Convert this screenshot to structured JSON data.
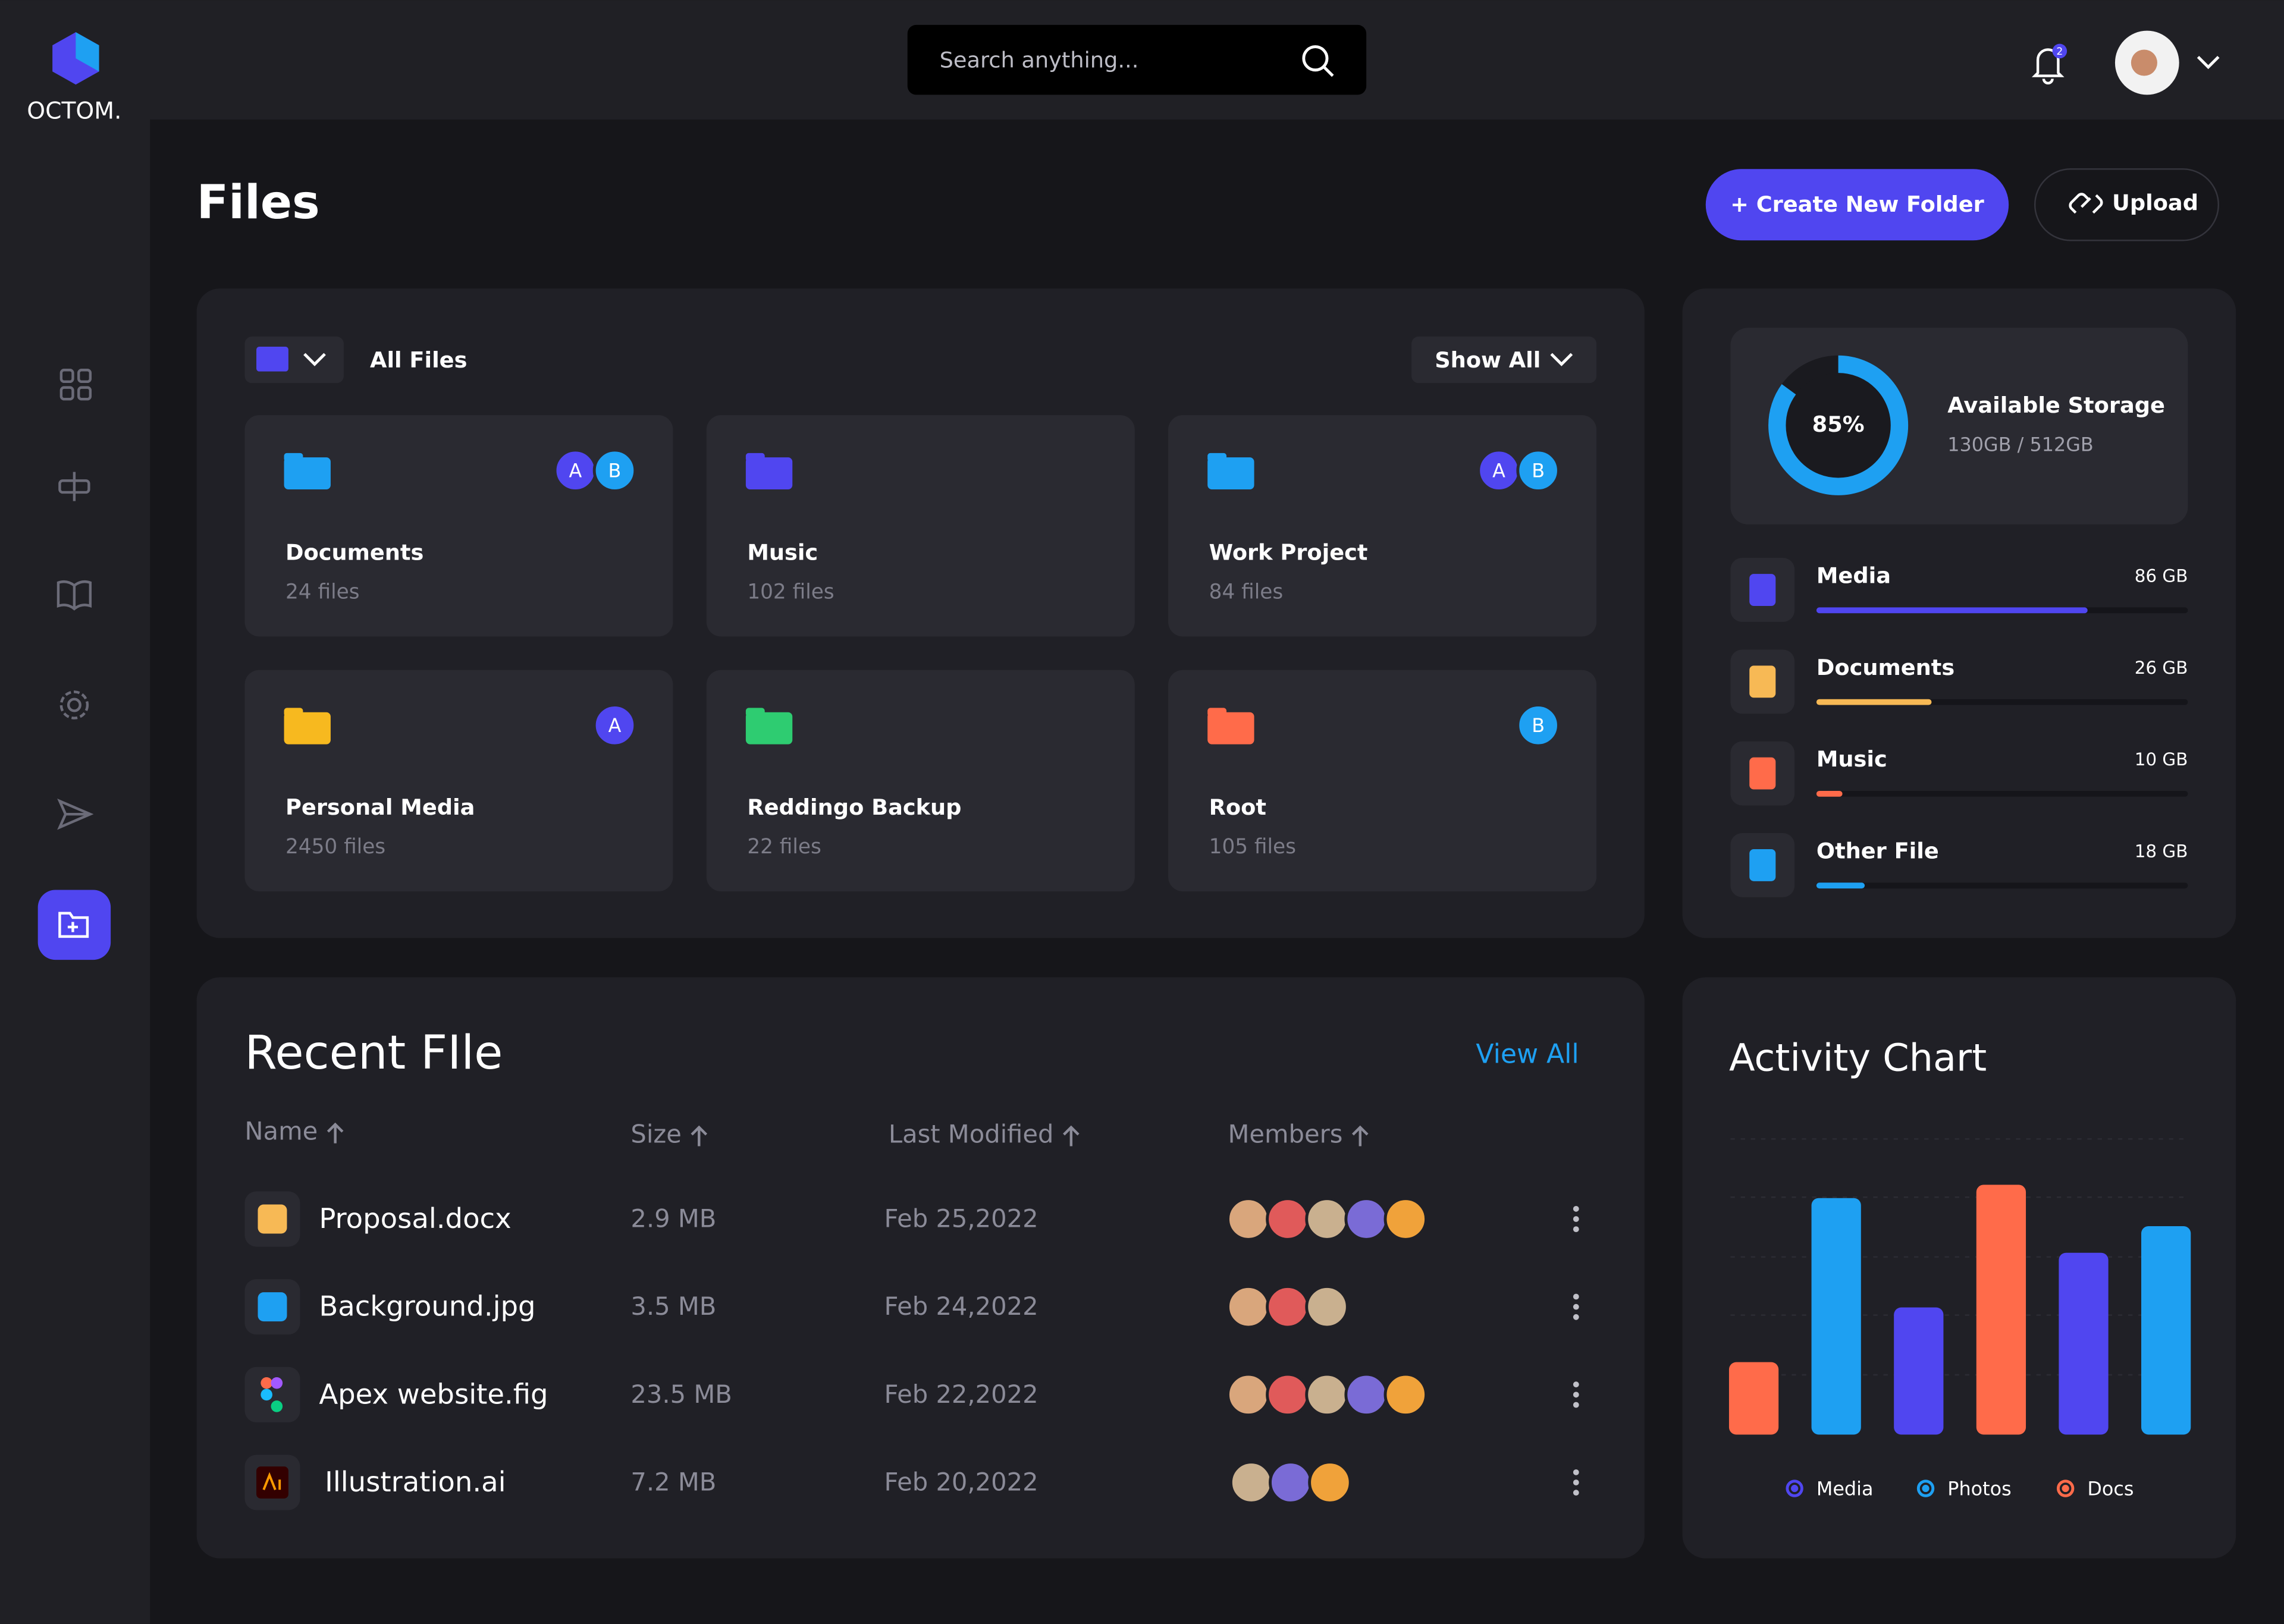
{
  "brand": "OCTOM.",
  "search_placeholder": "Search anything...",
  "notification_count": "2",
  "page_title": "Files",
  "actions": {
    "create": "+ Create New Folder",
    "upload": "Upload"
  },
  "folders_panel": {
    "filter": "All Files",
    "show": "Show All",
    "folders": [
      {
        "name": "Documents",
        "count": "24 files",
        "badges": [
          "A",
          "B"
        ],
        "color": "#1ea0f2"
      },
      {
        "name": "Music",
        "count": "102 files",
        "badges": [],
        "color": "#5046f0"
      },
      {
        "name": "Work Project",
        "count": "84 files",
        "badges": [
          "A",
          "B"
        ],
        "color": "#1ea0f2"
      },
      {
        "name": "Personal Media",
        "count": "2450 files",
        "badges": [
          "A"
        ],
        "color": "#f7b91f"
      },
      {
        "name": "Reddingo Backup",
        "count": "22 files",
        "badges": [],
        "color": "#2ecc71"
      },
      {
        "name": "Root",
        "count": "105 files",
        "badges": [
          "B"
        ],
        "color": "#ff6b4a"
      }
    ]
  },
  "storage": {
    "percent": 85,
    "percent_label": "85%",
    "title": "Available Storage",
    "capacity": "130GB / 512GB",
    "items": [
      {
        "name": "Media",
        "size": "86 GB",
        "progress": 73,
        "color": "#5046f0"
      },
      {
        "name": "Documents",
        "size": "26 GB",
        "progress": 31,
        "color": "#f7b955"
      },
      {
        "name": "Music",
        "size": "10 GB",
        "progress": 7,
        "color": "#ff6b4a"
      },
      {
        "name": "Other File",
        "size": "18 GB",
        "progress": 13,
        "color": "#1ea0f2"
      }
    ]
  },
  "recent": {
    "title": "Recent FIle",
    "view_all": "View All",
    "columns": [
      "Name",
      "Size",
      "Last Modified",
      "Members"
    ],
    "rows": [
      {
        "name": "Proposal.docx",
        "size": "2.9 MB",
        "modified": "Feb 25,2022",
        "members": 5
      },
      {
        "name": "Background.jpg",
        "size": "3.5 MB",
        "modified": "Feb 24,2022",
        "members": 3
      },
      {
        "name": "Apex website.fig",
        "size": "23.5 MB",
        "modified": "Feb 22,2022",
        "members": 5
      },
      {
        "name": "Illustration.ai",
        "size": "7.2 MB",
        "modified": "Feb 20,2022",
        "members": 3
      }
    ]
  },
  "activity_chart": {
    "type": "bar",
    "title": "Activity Chart",
    "categories": [
      null,
      null,
      null,
      null,
      null,
      null
    ],
    "ylim": [
      0,
      200
    ],
    "series": [
      {
        "name": "Media",
        "color": "#5046f0",
        "values": [
          null,
          null,
          86,
          null,
          123,
          null
        ]
      },
      {
        "name": "Photos",
        "color": "#1ea0f2",
        "values": [
          null,
          160,
          null,
          null,
          null,
          141
        ]
      },
      {
        "name": "Docs",
        "color": "#ff6b4a",
        "values": [
          49,
          null,
          null,
          169,
          null,
          null
        ]
      }
    ]
  }
}
